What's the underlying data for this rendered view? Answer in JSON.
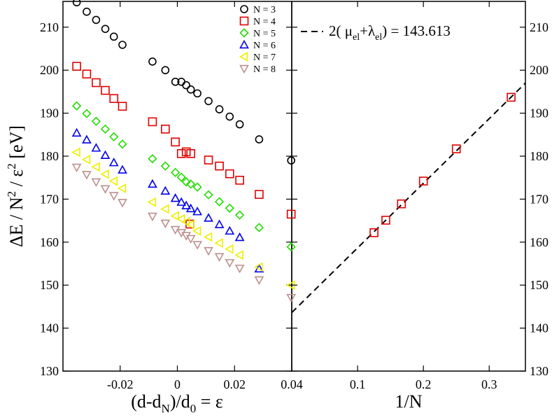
{
  "chart_data": [
    {
      "type": "scatter",
      "panel": "left",
      "xlabel_parts": [
        "(d-d",
        "N",
        ")/d",
        "0",
        " = ε"
      ],
      "ylabel_parts": [
        "ΔE / N",
        "2",
        " / ε",
        "2",
        " [eV]"
      ],
      "xlim": [
        -0.04,
        0.04
      ],
      "ylim": [
        130,
        216
      ],
      "xticks": [
        -0.02,
        0,
        0.02,
        0.04
      ],
      "xtick_labels": [
        "-0.02",
        "0",
        "0.02",
        "0.04"
      ],
      "yticks": [
        130,
        140,
        150,
        160,
        170,
        180,
        190,
        200,
        210
      ],
      "ytick_labels": [
        "130",
        "140",
        "150",
        "160",
        "170",
        "180",
        "190",
        "200",
        "210"
      ],
      "legend_position": "top-right",
      "series": [
        {
          "name": "N = 3",
          "marker": "circle",
          "color": "#000000",
          "points": [
            [
              -0.0352,
              215.8
            ],
            [
              -0.0317,
              213.6
            ],
            [
              -0.0284,
              211.7
            ],
            [
              -0.0252,
              209.6
            ],
            [
              -0.0222,
              207.8
            ],
            [
              -0.0192,
              205.9
            ],
            [
              -0.0087,
              202.0
            ],
            [
              -0.0042,
              200.0
            ],
            [
              -0.0007,
              197.3
            ],
            [
              0.0014,
              197.3
            ],
            [
              0.0031,
              196.5
            ],
            [
              0.0047,
              195.5
            ],
            [
              0.007,
              194.6
            ],
            [
              0.0109,
              192.8
            ],
            [
              0.0147,
              190.9
            ],
            [
              0.0183,
              189.2
            ],
            [
              0.0218,
              187.4
            ],
            [
              0.0286,
              183.9
            ],
            [
              0.0398,
              179.0
            ]
          ]
        },
        {
          "name": "N = 4",
          "marker": "square",
          "color": "#e00000",
          "points": [
            [
              -0.0352,
              200.9
            ],
            [
              -0.0317,
              199.1
            ],
            [
              -0.0284,
              197.1
            ],
            [
              -0.0252,
              195.3
            ],
            [
              -0.0222,
              193.4
            ],
            [
              -0.0192,
              191.6
            ],
            [
              -0.0087,
              188.0
            ],
            [
              -0.0042,
              186.3
            ],
            [
              -0.0007,
              183.3
            ],
            [
              0.0014,
              180.6
            ],
            [
              0.0031,
              181.0
            ],
            [
              0.0047,
              180.6
            ],
            [
              0.0109,
              179.1
            ],
            [
              0.0147,
              177.7
            ],
            [
              0.0183,
              175.9
            ],
            [
              0.0218,
              174.4
            ],
            [
              0.0286,
              171.1
            ],
            [
              0.0044,
              164.2
            ],
            [
              0.0398,
              166.5
            ]
          ]
        },
        {
          "name": "N = 5",
          "marker": "diamond",
          "color": "#22dd00",
          "points": [
            [
              -0.0352,
              191.7
            ],
            [
              -0.0317,
              189.9
            ],
            [
              -0.0284,
              188.1
            ],
            [
              -0.0252,
              186.3
            ],
            [
              -0.0222,
              184.5
            ],
            [
              -0.0192,
              182.8
            ],
            [
              -0.0087,
              179.4
            ],
            [
              -0.0042,
              177.7
            ],
            [
              -0.0007,
              176.2
            ],
            [
              0.0014,
              175.1
            ],
            [
              0.0031,
              174.0
            ],
            [
              0.0047,
              173.5
            ],
            [
              0.007,
              172.8
            ],
            [
              0.0109,
              171.0
            ],
            [
              0.0147,
              169.4
            ],
            [
              0.0183,
              167.9
            ],
            [
              0.0218,
              166.3
            ],
            [
              0.0286,
              163.4
            ],
            [
              0.0398,
              158.9
            ]
          ]
        },
        {
          "name": "N = 6",
          "marker": "triangle-up",
          "color": "#0000ee",
          "points": [
            [
              -0.0352,
              185.4
            ],
            [
              -0.0317,
              183.8
            ],
            [
              -0.0284,
              181.9
            ],
            [
              -0.0252,
              180.2
            ],
            [
              -0.0222,
              178.5
            ],
            [
              -0.0192,
              176.8
            ],
            [
              -0.0087,
              173.5
            ],
            [
              -0.0042,
              171.9
            ],
            [
              -0.0007,
              170.2
            ],
            [
              0.0014,
              169.3
            ],
            [
              0.0031,
              168.5
            ],
            [
              0.0047,
              167.8
            ],
            [
              0.007,
              167.1
            ],
            [
              0.0109,
              165.6
            ],
            [
              0.0147,
              164.1
            ],
            [
              0.0183,
              162.6
            ],
            [
              0.0218,
              161.1
            ],
            [
              0.0286,
              153.8
            ]
          ]
        },
        {
          "name": "N = 7",
          "marker": "triangle-left",
          "color": "#eeee00",
          "points": [
            [
              -0.0352,
              180.9
            ],
            [
              -0.0317,
              179.2
            ],
            [
              -0.0284,
              177.5
            ],
            [
              -0.0252,
              175.8
            ],
            [
              -0.0222,
              174.2
            ],
            [
              -0.0192,
              172.5
            ],
            [
              -0.0087,
              169.3
            ],
            [
              -0.0042,
              167.7
            ],
            [
              -0.0007,
              166.1
            ],
            [
              0.0014,
              165.4
            ],
            [
              0.0031,
              164.7
            ],
            [
              0.0047,
              164.1
            ],
            [
              0.007,
              162.6
            ],
            [
              0.0109,
              161.2
            ],
            [
              0.0147,
              159.8
            ],
            [
              0.0183,
              158.4
            ],
            [
              0.0218,
              157.0
            ],
            [
              0.0286,
              154.2
            ],
            [
              0.0398,
              150.0
            ]
          ]
        },
        {
          "name": "N = 8",
          "marker": "triangle-down",
          "color": "#bc8f8f",
          "points": [
            [
              -0.0352,
              177.4
            ],
            [
              -0.0317,
              175.7
            ],
            [
              -0.0284,
              174.0
            ],
            [
              -0.0252,
              172.4
            ],
            [
              -0.0222,
              170.8
            ],
            [
              -0.0192,
              169.2
            ],
            [
              -0.0087,
              166.0
            ],
            [
              -0.0042,
              164.4
            ],
            [
              -0.0007,
              162.9
            ],
            [
              0.0014,
              162.2
            ],
            [
              0.0031,
              161.5
            ],
            [
              0.0047,
              160.8
            ],
            [
              0.007,
              159.4
            ],
            [
              0.0109,
              158.0
            ],
            [
              0.0147,
              156.6
            ],
            [
              0.0183,
              155.2
            ],
            [
              0.0218,
              153.9
            ],
            [
              0.0286,
              151.2
            ],
            [
              0.0398,
              147.1
            ]
          ]
        }
      ]
    },
    {
      "type": "scatter",
      "panel": "right",
      "xlabel": "1/N",
      "xlim": [
        0,
        0.355
      ],
      "ylim": [
        130,
        216
      ],
      "xticks": [
        0.1,
        0.2,
        0.3
      ],
      "xtick_labels": [
        "0.1",
        "0.2",
        "0.3"
      ],
      "yticks": [
        130,
        140,
        150,
        160,
        170,
        180,
        190,
        200,
        210
      ],
      "ytick_labels": [
        "130",
        "140",
        "150",
        "160",
        "170",
        "180",
        "190",
        "200",
        "210"
      ],
      "series": [
        {
          "name": "data",
          "marker": "square",
          "color": "#e00000",
          "points": [
            [
              0.125,
              162.2
            ],
            [
              0.1429,
              165.1
            ],
            [
              0.1667,
              168.9
            ],
            [
              0.2,
              174.2
            ],
            [
              0.25,
              181.7
            ],
            [
              0.3333,
              193.7
            ]
          ]
        }
      ],
      "fit_line": {
        "style": "dashed",
        "color": "#000000",
        "intercept": 143.613,
        "slope": 150.4,
        "legend_parts": [
          "2( μ",
          "el",
          "+λ",
          "el",
          ") = 143.613"
        ]
      }
    }
  ]
}
